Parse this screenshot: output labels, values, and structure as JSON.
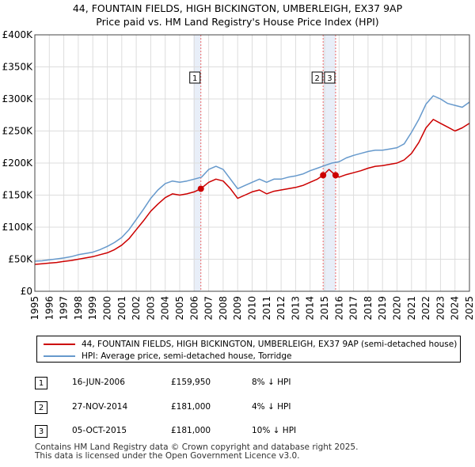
{
  "title_line1": "44, FOUNTAIN FIELDS, HIGH BICKINGTON, UMBERLEIGH, EX37 9AP",
  "title_line2": "Price paid vs. HM Land Registry's House Price Index (HPI)",
  "colors": {
    "property": "#cc0000",
    "hpi": "#6699cc",
    "shade": "#e8eef8",
    "vline": "#ee6666",
    "grid": "#dddddd"
  },
  "legend": {
    "property_label": "44, FOUNTAIN FIELDS, HIGH BICKINGTON, UMBERLEIGH, EX37 9AP (semi-detached house)",
    "hpi_label": "HPI: Average price, semi-detached house, Torridge"
  },
  "sales": [
    {
      "num": "1",
      "date": "16-JUN-2006",
      "price": "£159,950",
      "hpi": "8% ↓ HPI",
      "x": 2006.46,
      "y": 159950
    },
    {
      "num": "2",
      "date": "27-NOV-2014",
      "price": "£181,000",
      "hpi": "4% ↓ HPI",
      "x": 2014.9,
      "y": 181000
    },
    {
      "num": "3",
      "date": "05-OCT-2015",
      "price": "£181,000",
      "hpi": "10% ↓ HPI",
      "x": 2015.76,
      "y": 181000
    }
  ],
  "footer_line1": "Contains HM Land Registry data © Crown copyright and database right 2025.",
  "footer_line2": "This data is licensed under the Open Government Licence v3.0.",
  "chart_data": {
    "type": "line",
    "title": "44, FOUNTAIN FIELDS, HIGH BICKINGTON, UMBERLEIGH, EX37 9AP — Price paid vs. HM Land Registry's House Price Index (HPI)",
    "xlim": [
      1995,
      2025
    ],
    "ylim": [
      0,
      400000
    ],
    "x_ticks": [
      1995,
      1996,
      1997,
      1998,
      1999,
      2000,
      2001,
      2002,
      2003,
      2004,
      2005,
      2006,
      2007,
      2008,
      2009,
      2010,
      2011,
      2012,
      2013,
      2014,
      2015,
      2016,
      2017,
      2018,
      2019,
      2020,
      2021,
      2022,
      2023,
      2024,
      2025
    ],
    "y_ticks": [
      {
        "value": 0,
        "label": "£0"
      },
      {
        "value": 50000,
        "label": "£50K"
      },
      {
        "value": 100000,
        "label": "£100K"
      },
      {
        "value": 150000,
        "label": "£150K"
      },
      {
        "value": 200000,
        "label": "£200K"
      },
      {
        "value": 250000,
        "label": "£250K"
      },
      {
        "value": 300000,
        "label": "£300K"
      },
      {
        "value": 350000,
        "label": "£350K"
      },
      {
        "value": 400000,
        "label": "£400K"
      }
    ],
    "shaded_spans": [
      [
        2005.95,
        2006.46
      ],
      [
        2014.9,
        2015.76
      ]
    ],
    "series": [
      {
        "name": "HPI: Average price, semi-detached house, Torridge",
        "x": [
          1995,
          1995.5,
          1996,
          1996.5,
          1997,
          1997.5,
          1998,
          1998.5,
          1999,
          1999.5,
          2000,
          2000.5,
          2001,
          2001.5,
          2002,
          2002.5,
          2003,
          2003.5,
          2004,
          2004.5,
          2005,
          2005.5,
          2006,
          2006.5,
          2007,
          2007.5,
          2008,
          2008.5,
          2009,
          2009.5,
          2010,
          2010.5,
          2011,
          2011.5,
          2012,
          2012.5,
          2013,
          2013.5,
          2014,
          2014.5,
          2015,
          2015.5,
          2016,
          2016.5,
          2017,
          2017.5,
          2018,
          2018.5,
          2019,
          2019.5,
          2020,
          2020.5,
          2021,
          2021.5,
          2022,
          2022.5,
          2023,
          2023.5,
          2024,
          2024.5,
          2025
        ],
        "values": [
          47000,
          47500,
          49000,
          50500,
          52000,
          54000,
          57000,
          59000,
          61000,
          65000,
          70000,
          76000,
          84000,
          96000,
          112000,
          128000,
          145000,
          158000,
          168000,
          172000,
          170000,
          172000,
          175000,
          178000,
          190000,
          195000,
          190000,
          175000,
          160000,
          165000,
          170000,
          175000,
          170000,
          175000,
          175000,
          178000,
          180000,
          183000,
          188000,
          192000,
          196000,
          200000,
          202000,
          208000,
          212000,
          215000,
          218000,
          220000,
          220000,
          222000,
          224000,
          230000,
          248000,
          268000,
          292000,
          305000,
          300000,
          293000,
          290000,
          287000,
          295000
        ]
      },
      {
        "name": "44, FOUNTAIN FIELDS, HIGH BICKINGTON, UMBERLEIGH, EX37 9AP (semi-detached house)",
        "x": [
          1995,
          1995.5,
          1996,
          1996.5,
          1997,
          1997.5,
          1998,
          1998.5,
          1999,
          1999.5,
          2000,
          2000.5,
          2001,
          2001.5,
          2002,
          2002.5,
          2003,
          2003.5,
          2004,
          2004.5,
          2005,
          2005.5,
          2006,
          2006.46,
          2007,
          2007.5,
          2008,
          2008.5,
          2009,
          2009.5,
          2010,
          2010.5,
          2011,
          2011.5,
          2012,
          2012.5,
          2013,
          2013.5,
          2014,
          2014.5,
          2014.9,
          2015.3,
          2015.76,
          2016,
          2016.5,
          2017,
          2017.5,
          2018,
          2018.5,
          2019,
          2019.5,
          2020,
          2020.5,
          2021,
          2021.5,
          2022,
          2022.5,
          2023,
          2023.5,
          2024,
          2024.5,
          2025
        ],
        "values": [
          42000,
          43000,
          44000,
          45000,
          46500,
          48000,
          50000,
          52000,
          54000,
          57000,
          60000,
          65000,
          72000,
          82000,
          96000,
          110000,
          125000,
          136000,
          146000,
          152000,
          150000,
          152000,
          155000,
          159950,
          170000,
          175000,
          172000,
          160000,
          145000,
          150000,
          155000,
          158000,
          152000,
          156000,
          158000,
          160000,
          162000,
          165000,
          170000,
          175000,
          181000,
          190000,
          181000,
          178000,
          182000,
          185000,
          188000,
          192000,
          195000,
          196000,
          198000,
          200000,
          205000,
          215000,
          232000,
          255000,
          268000,
          262000,
          256000,
          250000,
          255000,
          262000
        ]
      }
    ],
    "markers": [
      {
        "label": "1",
        "x": 2006.46,
        "y": 159950
      },
      {
        "label": "2",
        "x": 2014.9,
        "y": 181000
      },
      {
        "label": "3",
        "x": 2015.76,
        "y": 181000
      }
    ]
  }
}
